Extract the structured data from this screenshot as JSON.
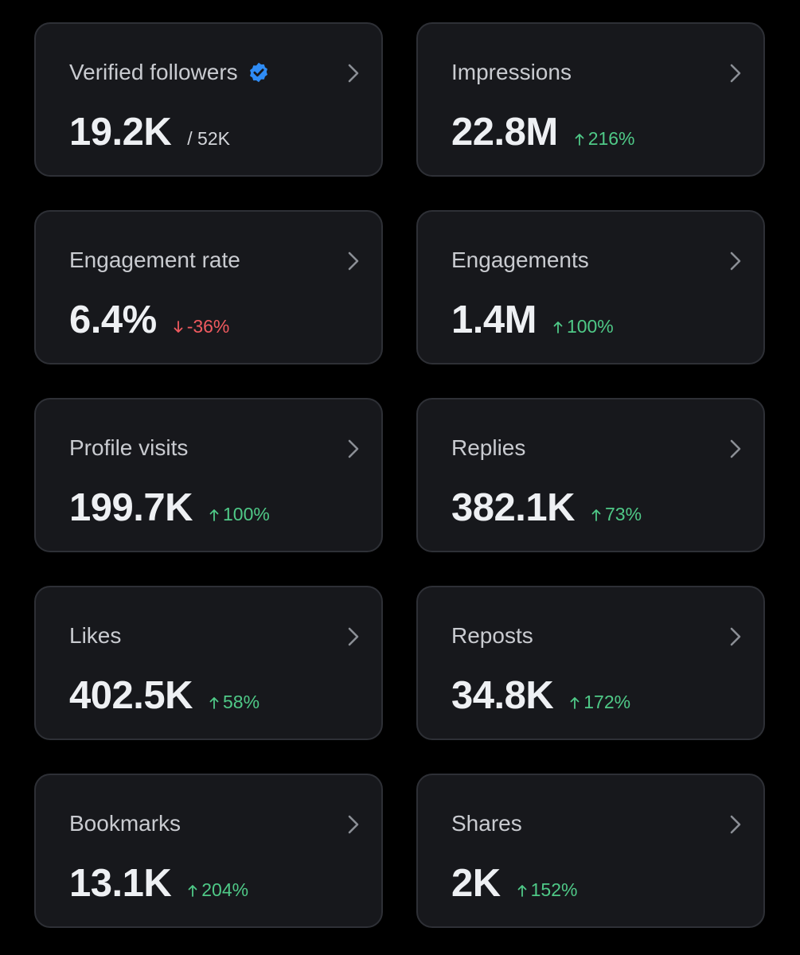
{
  "colors": {
    "background": "#000000",
    "card": "#17181c",
    "positive": "#4fc987",
    "negative": "#f05a5f",
    "verified_badge": "#2f8cf5"
  },
  "cards": [
    {
      "title": "Verified followers",
      "value": "19.2K",
      "total": "/ 52K",
      "badge": "verified-check-icon"
    },
    {
      "title": "Impressions",
      "value": "22.8M",
      "change": "216%",
      "direction": "up"
    },
    {
      "title": "Engagement rate",
      "value": "6.4%",
      "change": "-36%",
      "direction": "down"
    },
    {
      "title": "Engagements",
      "value": "1.4M",
      "change": "100%",
      "direction": "up"
    },
    {
      "title": "Profile visits",
      "value": "199.7K",
      "change": "100%",
      "direction": "up"
    },
    {
      "title": "Replies",
      "value": "382.1K",
      "change": "73%",
      "direction": "up"
    },
    {
      "title": "Likes",
      "value": "402.5K",
      "change": "58%",
      "direction": "up"
    },
    {
      "title": "Reposts",
      "value": "34.8K",
      "change": "172%",
      "direction": "up"
    },
    {
      "title": "Bookmarks",
      "value": "13.1K",
      "change": "204%",
      "direction": "up"
    },
    {
      "title": "Shares",
      "value": "2K",
      "change": "152%",
      "direction": "up"
    }
  ]
}
